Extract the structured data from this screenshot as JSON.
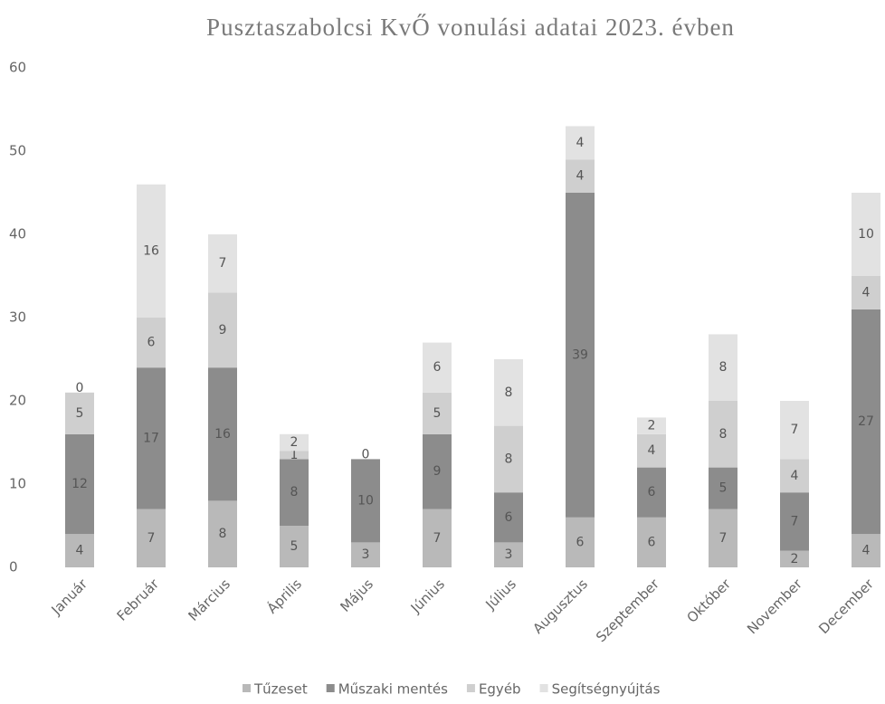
{
  "chart_data": {
    "type": "stacked_bar",
    "title": "Pusztaszabolcsi KvŐ vonulási adatai 2023. évben",
    "categories": [
      "Január",
      "Február",
      "Március",
      "Április",
      "Május",
      "Június",
      "Július",
      "Augusztus",
      "Szeptember",
      "Október",
      "November",
      "December"
    ],
    "series": [
      {
        "name": "Tűzeset",
        "color": "#b9b9b9",
        "values": [
          4,
          7,
          8,
          5,
          3,
          7,
          3,
          6,
          6,
          7,
          2,
          4
        ]
      },
      {
        "name": "Műszaki mentés",
        "color": "#8c8c8c",
        "values": [
          12,
          17,
          16,
          8,
          10,
          9,
          6,
          39,
          6,
          5,
          7,
          27
        ]
      },
      {
        "name": "Egyéb",
        "color": "#cfcfcf",
        "values": [
          5,
          6,
          9,
          1,
          0,
          5,
          8,
          4,
          4,
          8,
          4,
          4
        ]
      },
      {
        "name": "Segítségnyújtás",
        "color": "#e2e2e2",
        "values": [
          0,
          16,
          7,
          2,
          null,
          6,
          8,
          4,
          2,
          8,
          7,
          10
        ]
      }
    ],
    "ylim": [
      0,
      60
    ],
    "yticks": [
      0,
      10,
      20,
      30,
      40,
      50,
      60
    ],
    "grid": false,
    "legend": "bottom"
  }
}
